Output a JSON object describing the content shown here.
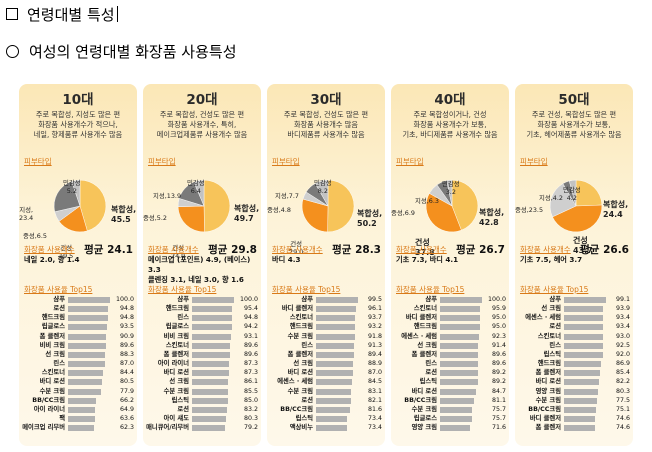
{
  "heading1": "연령대별 특성",
  "heading2": "여성의 연령대별 화장품 사용특성",
  "labels": {
    "skin_type": "피부타입",
    "count": "화장품 사용개수",
    "top15": "화장품 사용율 Top15"
  },
  "colors": {
    "complex": "#f7c45a",
    "dry": "#f4901e",
    "normal": "#cfcfcf",
    "oily": "#7a7a7a",
    "sensitive": "#c2c2c2",
    "bar": "#b1b1b1",
    "accent": "#d97a18",
    "panel": "#fbe7b6"
  },
  "panels": [
    {
      "age": "10대",
      "desc": [
        "주로 복합성, 지성도 많은 편",
        "화장품 사용개수가 적으나,",
        "네일, 향제품류 사용개수 많음"
      ],
      "skin": [
        {
          "label": "복합성",
          "value": "45.5",
          "pct": 45.5,
          "color": "#f7c45a"
        },
        {
          "label": "건성",
          "value": "19.5",
          "pct": 19.5,
          "color": "#f4901e"
        },
        {
          "label": "중성",
          "value": "6.5",
          "pct": 6.5,
          "color": "#cfcfcf"
        },
        {
          "label": "지성",
          "value": "23.4",
          "pct": 23.4,
          "color": "#7a7a7a"
        },
        {
          "label": "민감성",
          "value": "5.2",
          "pct": 5.2,
          "color": "#c2c2c2"
        }
      ],
      "avg": "평균 24.1",
      "detail": [
        "네일 2.0, 향 1.4"
      ],
      "bars": [
        {
          "name": "샴푸",
          "value": "100.0"
        },
        {
          "name": "로션",
          "value": "94.8"
        },
        {
          "name": "핸드크림",
          "value": "94.8"
        },
        {
          "name": "립글로스",
          "value": "93.5"
        },
        {
          "name": "폼 클렌저",
          "value": "90.9"
        },
        {
          "name": "비비 크림",
          "value": "89.6"
        },
        {
          "name": "선 크림",
          "value": "88.3"
        },
        {
          "name": "린스",
          "value": "87.0"
        },
        {
          "name": "스킨토너",
          "value": "84.4"
        },
        {
          "name": "바디 로션",
          "value": "80.5"
        },
        {
          "name": "수분 크림",
          "value": "77.9"
        },
        {
          "name": "BB/CC크림",
          "value": "66.2"
        },
        {
          "name": "아이 라이너",
          "value": "64.9"
        },
        {
          "name": "팩",
          "value": "63.6"
        },
        {
          "name": "메이크업 리무버",
          "value": "62.3"
        }
      ]
    },
    {
      "age": "20대",
      "desc": [
        "주로 복합성, 건성도 많은 편",
        "화장품 사용개수, 특히,",
        "메이크업제품류 사용개수 많음"
      ],
      "skin": [
        {
          "label": "복합성",
          "value": "49.7",
          "pct": 49.7,
          "color": "#f7c45a"
        },
        {
          "label": "건성",
          "value": "24.9",
          "pct": 24.9,
          "color": "#f4901e"
        },
        {
          "label": "중성",
          "value": "5.2",
          "pct": 5.2,
          "color": "#cfcfcf"
        },
        {
          "label": "지성",
          "value": "13.9",
          "pct": 13.9,
          "color": "#7a7a7a"
        },
        {
          "label": "민감성",
          "value": "6.4",
          "pct": 6.4,
          "color": "#c2c2c2"
        }
      ],
      "avg": "평균 29.8",
      "detail": [
        "메이크업 (포인트) 4.9, (베이스) 3.3",
        "클렌징 3.1, 네일 3.0, 향 1.6"
      ],
      "bars": [
        {
          "name": "샴푸",
          "value": "100.0"
        },
        {
          "name": "핸드크림",
          "value": "95.4"
        },
        {
          "name": "린스",
          "value": "94.8"
        },
        {
          "name": "립글로스",
          "value": "94.2"
        },
        {
          "name": "비비 크림",
          "value": "93.1"
        },
        {
          "name": "스킨토너",
          "value": "89.6"
        },
        {
          "name": "폼 클렌저",
          "value": "89.6"
        },
        {
          "name": "아이 라이너",
          "value": "87.3"
        },
        {
          "name": "바디 로션",
          "value": "87.3"
        },
        {
          "name": "선 크림",
          "value": "86.1"
        },
        {
          "name": "수분 크림",
          "value": "85.5"
        },
        {
          "name": "립스틱",
          "value": "85.0"
        },
        {
          "name": "로션",
          "value": "83.2"
        },
        {
          "name": "아이 섀도",
          "value": "80.3"
        },
        {
          "name": "매니큐어/리무버",
          "value": "79.2"
        }
      ]
    },
    {
      "age": "30대",
      "desc": [
        "주로 복합성, 건성도 많은 편",
        "화장품 사용개수 많음",
        "바디제품류 사용개수 많음"
      ],
      "skin": [
        {
          "label": "복합성",
          "value": "50.2",
          "pct": 50.2,
          "color": "#f7c45a"
        },
        {
          "label": "건성",
          "value": "29.0",
          "pct": 29.0,
          "color": "#f4901e"
        },
        {
          "label": "중성",
          "value": "4.8",
          "pct": 4.8,
          "color": "#cfcfcf"
        },
        {
          "label": "지성",
          "value": "7.7",
          "pct": 7.7,
          "color": "#7a7a7a"
        },
        {
          "label": "민감성",
          "value": "8.2",
          "pct": 8.2,
          "color": "#c2c2c2"
        }
      ],
      "avg": "평균 28.3",
      "detail": [
        "바디 4.3"
      ],
      "bars": [
        {
          "name": "샴푸",
          "value": "99.5"
        },
        {
          "name": "바디 클렌저",
          "value": "96.1"
        },
        {
          "name": "스킨토너",
          "value": "93.7"
        },
        {
          "name": "핸드크림",
          "value": "93.2"
        },
        {
          "name": "수분 크림",
          "value": "91.8"
        },
        {
          "name": "린스",
          "value": "91.3"
        },
        {
          "name": "폼 클렌저",
          "value": "89.4"
        },
        {
          "name": "선 크림",
          "value": "88.9"
        },
        {
          "name": "바디 로션",
          "value": "87.0"
        },
        {
          "name": "에센스 · 세럼",
          "value": "84.5"
        },
        {
          "name": "수분 크림",
          "value": "83.1"
        },
        {
          "name": "로션",
          "value": "82.1"
        },
        {
          "name": "BB/CC크림",
          "value": "81.6"
        },
        {
          "name": "립스틱",
          "value": "73.4"
        },
        {
          "name": "액상비누",
          "value": "73.4"
        }
      ]
    },
    {
      "age": "40대",
      "desc": [
        "주로 복합성이거나, 건성",
        "화장품 사용개수가 보통,",
        "기초, 바디제품류 사용개수 많음"
      ],
      "skin": [
        {
          "label": "복합성",
          "value": "42.8",
          "pct": 42.8,
          "color": "#f7c45a"
        },
        {
          "label": "건성",
          "value": "37.8",
          "pct": 37.8,
          "color": "#f4901e"
        },
        {
          "label": "중성",
          "value": "6.9",
          "pct": 6.9,
          "color": "#cfcfcf"
        },
        {
          "label": "지성",
          "value": "6.3",
          "pct": 6.3,
          "color": "#7a7a7a"
        },
        {
          "label": "민감성",
          "value": "3.2",
          "pct": 3.2,
          "color": "#c2c2c2"
        }
      ],
      "avg": "평균 26.7",
      "detail": [
        "기초 7.3, 바디 4.1"
      ],
      "bars": [
        {
          "name": "샴푸",
          "value": "100.0"
        },
        {
          "name": "스킨토너",
          "value": "95.9"
        },
        {
          "name": "바디 클렌저",
          "value": "95.0"
        },
        {
          "name": "핸드크림",
          "value": "95.0"
        },
        {
          "name": "에센스 · 세럼",
          "value": "92.3"
        },
        {
          "name": "선 크림",
          "value": "91.4"
        },
        {
          "name": "폼 클렌저",
          "value": "89.6"
        },
        {
          "name": "린스",
          "value": "89.6"
        },
        {
          "name": "로션",
          "value": "89.2"
        },
        {
          "name": "립스틱",
          "value": "89.2"
        },
        {
          "name": "바디 로션",
          "value": "84.7"
        },
        {
          "name": "BB/CC크림",
          "value": "81.1"
        },
        {
          "name": "수분 크림",
          "value": "75.7"
        },
        {
          "name": "립글로스",
          "value": "75.7"
        },
        {
          "name": "영양 크림",
          "value": "71.6"
        }
      ]
    },
    {
      "age": "50대",
      "desc": [
        "주로 건성, 복합성도 많은 편",
        "화장품 사용개수가 보통,",
        "기초, 헤어제품류 사용개수 많음"
      ],
      "skin": [
        {
          "label": "복합성",
          "value": "24.4",
          "pct": 24.4,
          "color": "#f7c45a"
        },
        {
          "label": "건성",
          "value": "43.7",
          "pct": 43.7,
          "color": "#f4901e"
        },
        {
          "label": "중성",
          "value": "23.5",
          "pct": 23.5,
          "color": "#cfcfcf"
        },
        {
          "label": "지성",
          "value": "4.2",
          "pct": 4.2,
          "color": "#7a7a7a"
        },
        {
          "label": "민감성",
          "value": "4.2",
          "pct": 4.2,
          "color": "#c2c2c2"
        }
      ],
      "avg": "평균 26.6",
      "detail": [
        "기초 7.5, 헤어 3.7"
      ],
      "bars": [
        {
          "name": "샴푸",
          "value": "99.1"
        },
        {
          "name": "선 크림",
          "value": "93.9"
        },
        {
          "name": "에센스 · 세럼",
          "value": "93.4"
        },
        {
          "name": "로션",
          "value": "93.4"
        },
        {
          "name": "스킨토너",
          "value": "93.0"
        },
        {
          "name": "린스",
          "value": "92.5"
        },
        {
          "name": "립스틱",
          "value": "92.0"
        },
        {
          "name": "핸드크림",
          "value": "86.9"
        },
        {
          "name": "폼 클렌저",
          "value": "85.4"
        },
        {
          "name": "바디 로션",
          "value": "82.2"
        },
        {
          "name": "영양 크림",
          "value": "80.3"
        },
        {
          "name": "수분 크림",
          "value": "77.5"
        },
        {
          "name": "BB/CC크림",
          "value": "75.1"
        },
        {
          "name": "바디 클렌저",
          "value": "74.6"
        },
        {
          "name": "폼 클렌저",
          "value": "74.6"
        }
      ]
    }
  ]
}
